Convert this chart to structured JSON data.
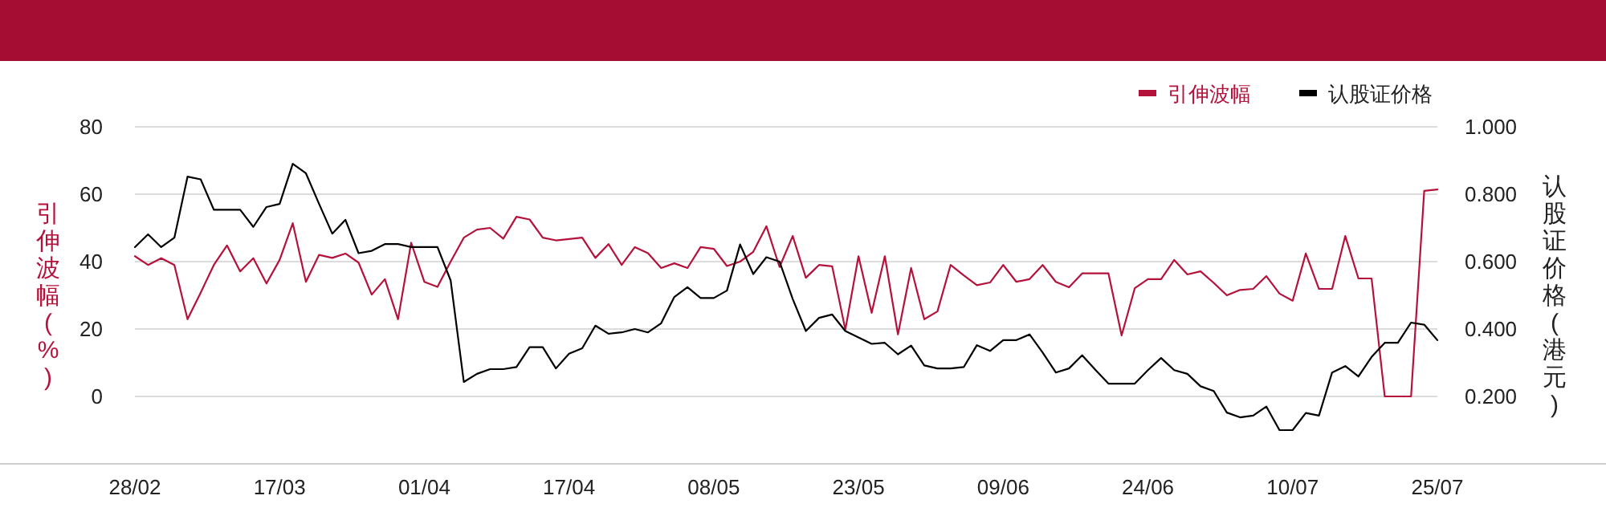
{
  "chart_data": {
    "type": "line",
    "ylabel": "引伸波幅(%)",
    "y2label": "认股证价格(港元)",
    "categories": [
      "28/02",
      null,
      null,
      null,
      null,
      null,
      null,
      null,
      null,
      null,
      null,
      "17/03",
      null,
      null,
      null,
      null,
      null,
      null,
      null,
      null,
      null,
      null,
      "01/04",
      null,
      null,
      null,
      null,
      null,
      null,
      null,
      null,
      null,
      null,
      "17/04",
      null,
      null,
      null,
      null,
      null,
      null,
      null,
      null,
      null,
      null,
      "08/05",
      null,
      null,
      null,
      null,
      null,
      null,
      null,
      null,
      null,
      null,
      "23/05",
      null,
      null,
      null,
      null,
      null,
      null,
      null,
      null,
      null,
      null,
      "09/06",
      null,
      null,
      null,
      null,
      null,
      null,
      null,
      null,
      null,
      null,
      "24/06",
      null,
      null,
      null,
      null,
      null,
      null,
      null,
      null,
      null,
      null,
      "10/07",
      null,
      null,
      null,
      null,
      null,
      null,
      null,
      null,
      null,
      null,
      "25/07"
    ],
    "series": [
      {
        "name": "引伸波幅",
        "color": "#b5123b",
        "values": [
          41.6,
          39,
          41,
          39,
          22.9,
          30.8,
          39,
          44.8,
          37.1,
          41,
          33.5,
          40.5,
          51.4,
          34,
          42,
          41.1,
          42.4,
          39.7,
          30.2,
          34.8,
          22.9,
          45.6,
          34,
          32.5,
          40,
          47.1,
          49.5,
          50,
          46.8,
          53.3,
          52.5,
          47.1,
          46.3,
          46.7,
          47.1,
          41.1,
          45.2,
          39,
          44.3,
          42.5,
          38.1,
          39.5,
          38.1,
          44.3,
          43.8,
          38.7,
          40,
          42.9,
          50.5,
          38.4,
          47.6,
          35.2,
          39,
          38.6,
          19.8,
          41.6,
          24.8,
          41.6,
          18.4,
          38.1,
          22.9,
          25.2,
          39,
          35.9,
          33,
          33.8,
          39,
          34,
          34.8,
          39,
          34,
          32.4,
          36.5,
          36.5,
          36.5,
          18.1,
          32.1,
          34.8,
          34.8,
          40.5,
          36.2,
          37.1,
          33.7,
          30,
          31.6,
          31.9,
          35.7,
          30.5,
          28.4,
          42.4,
          31.9,
          31.9,
          47.6,
          35,
          35,
          0,
          0,
          0,
          61,
          61.4
        ]
      },
      {
        "name": "认股证价格",
        "color": "#000000",
        "axis": "y2",
        "values": [
          0.643,
          0.681,
          0.643,
          0.671,
          0.852,
          0.844,
          0.754,
          0.754,
          0.754,
          0.703,
          0.762,
          0.771,
          0.89,
          0.862,
          0.771,
          0.683,
          0.724,
          0.625,
          0.632,
          0.652,
          0.652,
          0.643,
          0.643,
          0.643,
          0.544,
          0.243,
          0.267,
          0.281,
          0.281,
          0.287,
          0.346,
          0.346,
          0.283,
          0.327,
          0.343,
          0.41,
          0.386,
          0.39,
          0.4,
          0.39,
          0.417,
          0.495,
          0.524,
          0.492,
          0.492,
          0.514,
          0.651,
          0.563,
          0.613,
          0.6,
          0.489,
          0.394,
          0.433,
          0.443,
          0.394,
          0.375,
          0.356,
          0.359,
          0.325,
          0.351,
          0.292,
          0.283,
          0.283,
          0.287,
          0.352,
          0.335,
          0.367,
          0.367,
          0.384,
          0.33,
          0.271,
          0.283,
          0.322,
          0.279,
          0.238,
          0.238,
          0.238,
          0.278,
          0.314,
          0.278,
          0.267,
          0.23,
          0.216,
          0.152,
          0.138,
          0.143,
          0.17,
          0.1,
          0.1,
          0.151,
          0.143,
          0.271,
          0.29,
          0.259,
          0.317,
          0.359,
          0.359,
          0.419,
          0.413,
          0.367
        ]
      }
    ],
    "ylim": [
      -20,
      80
    ],
    "yticks": [
      0,
      20,
      40,
      60,
      80
    ],
    "y2lim": [
      0,
      1
    ],
    "y2ticks": [
      {
        "value": 0.2,
        "label": "0.200"
      },
      {
        "value": 0.4,
        "label": "0.400"
      },
      {
        "value": 0.6,
        "label": "0.600"
      },
      {
        "value": 0.8,
        "label": "0.800"
      },
      {
        "value": 1,
        "label": "1.000"
      }
    ],
    "grid": "y",
    "legend": "top right",
    "marker": "none",
    "line_style": "solid"
  }
}
